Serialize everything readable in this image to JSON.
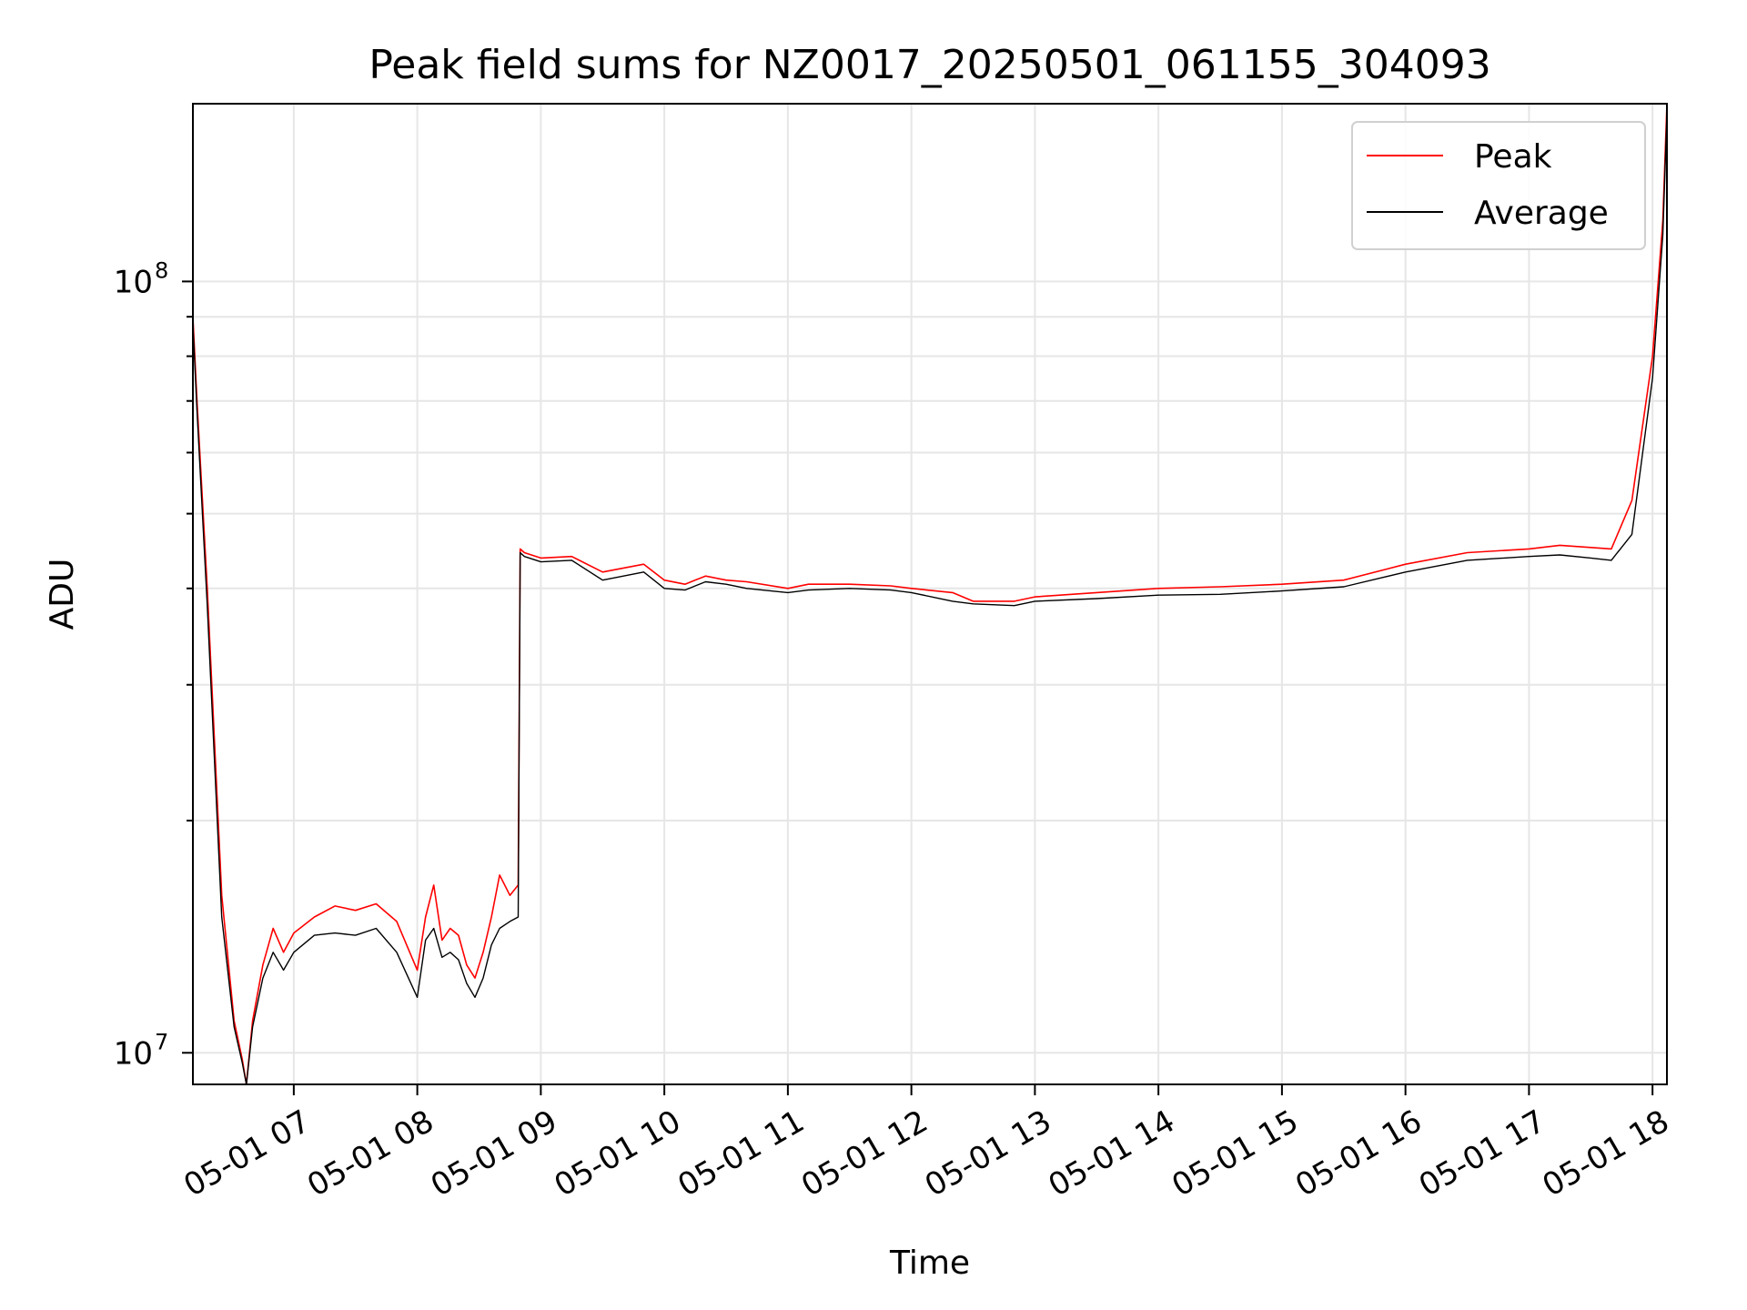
{
  "chart_data": {
    "type": "line",
    "title": "Peak field sums for NZ0017_20250501_061155_304093",
    "xlabel": "Time",
    "ylabel": "ADU",
    "yscale": "log",
    "ylim": [
      9100000,
      170000000
    ],
    "xlim": [
      "2025-05-01 06:11",
      "2025-05-01 18:07"
    ],
    "x_tick_labels": [
      "05-01 07",
      "05-01 08",
      "05-01 09",
      "05-01 10",
      "05-01 11",
      "05-01 12",
      "05-01 13",
      "05-01 14",
      "05-01 15",
      "05-01 16",
      "05-01 17",
      "05-01 18"
    ],
    "x_ticks": [
      "2025-05-01 07:00",
      "2025-05-01 08:00",
      "2025-05-01 09:00",
      "2025-05-01 10:00",
      "2025-05-01 11:00",
      "2025-05-01 12:00",
      "2025-05-01 13:00",
      "2025-05-01 14:00",
      "2025-05-01 15:00",
      "2025-05-01 16:00",
      "2025-05-01 17:00",
      "2025-05-01 18:00"
    ],
    "y_tick_labels": [
      {
        "mantissa": "10",
        "exponent": "7",
        "value": 10000000
      },
      {
        "mantissa": "10",
        "exponent": "8",
        "value": 100000000
      }
    ],
    "grid": true,
    "legend": {
      "placement": "top-right"
    },
    "series": [
      {
        "name": "Peak",
        "color": "#ff0000",
        "x": [
          "2025-05-01 06:11",
          "2025-05-01 06:13",
          "2025-05-01 06:18",
          "2025-05-01 06:25",
          "2025-05-01 06:31",
          "2025-05-01 06:35",
          "2025-05-01 06:37",
          "2025-05-01 06:40",
          "2025-05-01 06:45",
          "2025-05-01 06:50",
          "2025-05-01 06:55",
          "2025-05-01 07:00",
          "2025-05-01 07:10",
          "2025-05-01 07:20",
          "2025-05-01 07:30",
          "2025-05-01 07:40",
          "2025-05-01 07:50",
          "2025-05-01 08:00",
          "2025-05-01 08:04",
          "2025-05-01 08:08",
          "2025-05-01 08:12",
          "2025-05-01 08:16",
          "2025-05-01 08:20",
          "2025-05-01 08:24",
          "2025-05-01 08:28",
          "2025-05-01 08:32",
          "2025-05-01 08:36",
          "2025-05-01 08:40",
          "2025-05-01 08:45",
          "2025-05-01 08:49",
          "2025-05-01 08:50",
          "2025-05-01 08:52",
          "2025-05-01 09:00",
          "2025-05-01 09:15",
          "2025-05-01 09:30",
          "2025-05-01 09:50",
          "2025-05-01 10:00",
          "2025-05-01 10:10",
          "2025-05-01 10:20",
          "2025-05-01 10:30",
          "2025-05-01 10:40",
          "2025-05-01 11:00",
          "2025-05-01 11:10",
          "2025-05-01 11:30",
          "2025-05-01 11:50",
          "2025-05-01 12:00",
          "2025-05-01 12:20",
          "2025-05-01 12:30",
          "2025-05-01 12:50",
          "2025-05-01 13:00",
          "2025-05-01 13:30",
          "2025-05-01 14:00",
          "2025-05-01 14:30",
          "2025-05-01 15:00",
          "2025-05-01 15:30",
          "2025-05-01 16:00",
          "2025-05-01 16:30",
          "2025-05-01 17:00",
          "2025-05-01 17:15",
          "2025-05-01 17:30",
          "2025-05-01 17:40",
          "2025-05-01 17:50",
          "2025-05-01 18:00",
          "2025-05-01 18:05",
          "2025-05-01 18:07"
        ],
        "y": [
          90000000,
          70000000,
          40000000,
          16000000,
          11000000,
          9800000,
          9100000,
          11000000,
          13000000,
          14500000,
          13500000,
          14300000,
          15000000,
          15500000,
          15300000,
          15600000,
          14800000,
          12800000,
          15000000,
          16500000,
          14000000,
          14500000,
          14200000,
          13000000,
          12500000,
          13500000,
          15000000,
          17000000,
          16000000,
          16500000,
          45000000,
          44500000,
          43800000,
          44000000,
          42000000,
          43000000,
          41000000,
          40500000,
          41500000,
          41000000,
          40800000,
          40000000,
          40500000,
          40500000,
          40300000,
          40000000,
          39500000,
          38500000,
          38500000,
          39000000,
          39500000,
          40000000,
          40200000,
          40500000,
          41000000,
          43000000,
          44500000,
          45000000,
          45500000,
          45200000,
          45000000,
          52000000,
          80000000,
          120000000,
          170000000
        ]
      },
      {
        "name": "Average",
        "color": "#000000",
        "x": [
          "2025-05-01 06:11",
          "2025-05-01 06:13",
          "2025-05-01 06:18",
          "2025-05-01 06:25",
          "2025-05-01 06:31",
          "2025-05-01 06:35",
          "2025-05-01 06:37",
          "2025-05-01 06:40",
          "2025-05-01 06:45",
          "2025-05-01 06:50",
          "2025-05-01 06:55",
          "2025-05-01 07:00",
          "2025-05-01 07:10",
          "2025-05-01 07:20",
          "2025-05-01 07:30",
          "2025-05-01 07:40",
          "2025-05-01 07:50",
          "2025-05-01 08:00",
          "2025-05-01 08:04",
          "2025-05-01 08:08",
          "2025-05-01 08:12",
          "2025-05-01 08:16",
          "2025-05-01 08:20",
          "2025-05-01 08:24",
          "2025-05-01 08:28",
          "2025-05-01 08:32",
          "2025-05-01 08:36",
          "2025-05-01 08:40",
          "2025-05-01 08:45",
          "2025-05-01 08:49",
          "2025-05-01 08:50",
          "2025-05-01 08:52",
          "2025-05-01 09:00",
          "2025-05-01 09:15",
          "2025-05-01 09:30",
          "2025-05-01 09:50",
          "2025-05-01 10:00",
          "2025-05-01 10:10",
          "2025-05-01 10:20",
          "2025-05-01 10:30",
          "2025-05-01 10:40",
          "2025-05-01 11:00",
          "2025-05-01 11:10",
          "2025-05-01 11:30",
          "2025-05-01 11:50",
          "2025-05-01 12:00",
          "2025-05-01 12:20",
          "2025-05-01 12:30",
          "2025-05-01 12:50",
          "2025-05-01 13:00",
          "2025-05-01 13:30",
          "2025-05-01 14:00",
          "2025-05-01 14:30",
          "2025-05-01 15:00",
          "2025-05-01 15:30",
          "2025-05-01 16:00",
          "2025-05-01 16:30",
          "2025-05-01 17:00",
          "2025-05-01 17:15",
          "2025-05-01 17:30",
          "2025-05-01 17:40",
          "2025-05-01 17:50",
          "2025-05-01 18:00",
          "2025-05-01 18:05",
          "2025-05-01 18:07"
        ],
        "y": [
          88000000,
          68000000,
          38000000,
          15000000,
          10800000,
          9700000,
          9100000,
          10800000,
          12500000,
          13500000,
          12800000,
          13500000,
          14200000,
          14300000,
          14200000,
          14500000,
          13500000,
          11800000,
          14000000,
          14500000,
          13300000,
          13500000,
          13200000,
          12300000,
          11800000,
          12500000,
          13800000,
          14500000,
          14800000,
          15000000,
          44500000,
          44000000,
          43300000,
          43500000,
          41000000,
          42000000,
          40000000,
          39800000,
          40800000,
          40500000,
          40000000,
          39500000,
          39800000,
          40000000,
          39800000,
          39500000,
          38500000,
          38200000,
          38000000,
          38500000,
          38800000,
          39200000,
          39300000,
          39700000,
          40200000,
          42000000,
          43500000,
          44000000,
          44200000,
          43800000,
          43500000,
          47000000,
          75000000,
          115000000,
          165000000
        ]
      }
    ]
  }
}
